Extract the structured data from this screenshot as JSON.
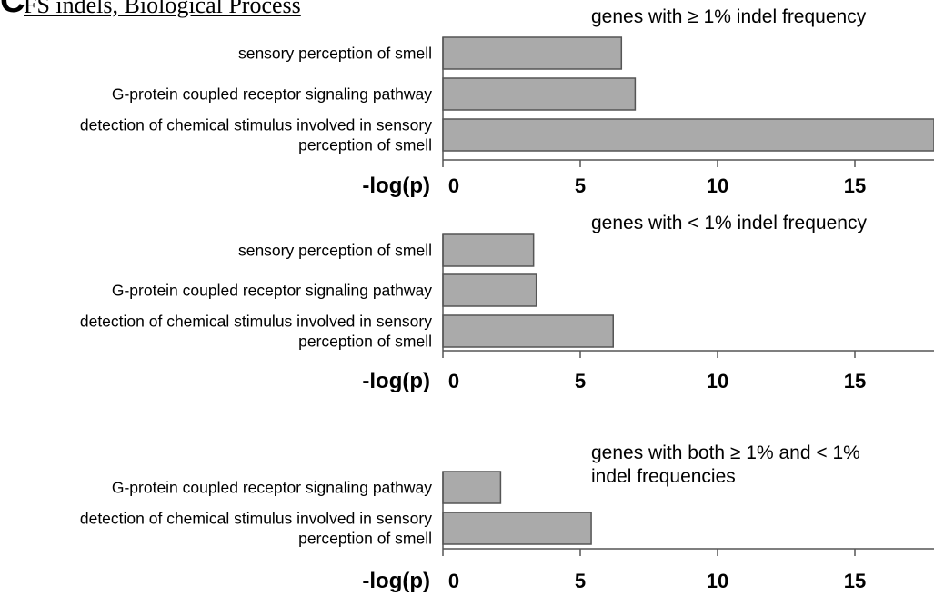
{
  "figure": {
    "panel_letter": "C",
    "panel_title": "FS indels, Biological Process"
  },
  "chart_data": [
    {
      "type": "bar",
      "orientation": "horizontal",
      "title": "genes with ≥ 1% indel frequency",
      "title_lines": [
        "genes with ≥ 1% indel frequency"
      ],
      "xlabel": "-log(p)",
      "ylabel": "",
      "xlim": [
        0,
        17.6
      ],
      "xticks": [
        0,
        5,
        10,
        15
      ],
      "categories": [
        "sensory perception of smell",
        "G-protein coupled receptor signaling pathway",
        "detection of chemical stimulus involved in sensory perception of smell"
      ],
      "category_lines": [
        [
          "sensory perception of smell"
        ],
        [
          "G-protein coupled receptor signaling pathway"
        ],
        [
          "detection of chemical stimulus involved in sensory",
          "perception of smell"
        ]
      ],
      "values": [
        6.5,
        7.0,
        17.9
      ],
      "bar_color": "#aaaaaa",
      "grid": false,
      "legend": "none"
    },
    {
      "type": "bar",
      "orientation": "horizontal",
      "title": "genes with < 1% indel frequency",
      "title_lines": [
        "genes with < 1% indel frequency"
      ],
      "xlabel": "-log(p)",
      "ylabel": "",
      "xlim": [
        0,
        17.6
      ],
      "xticks": [
        0,
        5,
        10,
        15
      ],
      "categories": [
        "sensory perception of smell",
        "G-protein coupled receptor signaling pathway",
        "detection of chemical stimulus involved in sensory perception of smell"
      ],
      "category_lines": [
        [
          "sensory perception of smell"
        ],
        [
          "G-protein coupled receptor signaling pathway"
        ],
        [
          "detection of chemical stimulus involved in sensory",
          "perception of smell"
        ]
      ],
      "values": [
        3.3,
        3.4,
        6.2
      ],
      "bar_color": "#aaaaaa",
      "grid": false,
      "legend": "none"
    },
    {
      "type": "bar",
      "orientation": "horizontal",
      "title": "genes with both ≥ 1% and < 1% indel frequencies",
      "title_lines": [
        "genes with both ≥ 1% and < 1%",
        "indel frequencies"
      ],
      "xlabel": "-log(p)",
      "ylabel": "",
      "xlim": [
        0,
        17.6
      ],
      "xticks": [
        0,
        5,
        10,
        15
      ],
      "categories": [
        "G-protein coupled receptor signaling pathway",
        "detection of chemical stimulus involved in sensory perception of smell"
      ],
      "category_lines": [
        [
          "G-protein coupled receptor signaling pathway"
        ],
        [
          "detection of chemical stimulus involved in sensory",
          "perception of smell"
        ]
      ],
      "values": [
        2.1,
        5.4
      ],
      "bar_color": "#aaaaaa",
      "grid": false,
      "legend": "none"
    }
  ]
}
